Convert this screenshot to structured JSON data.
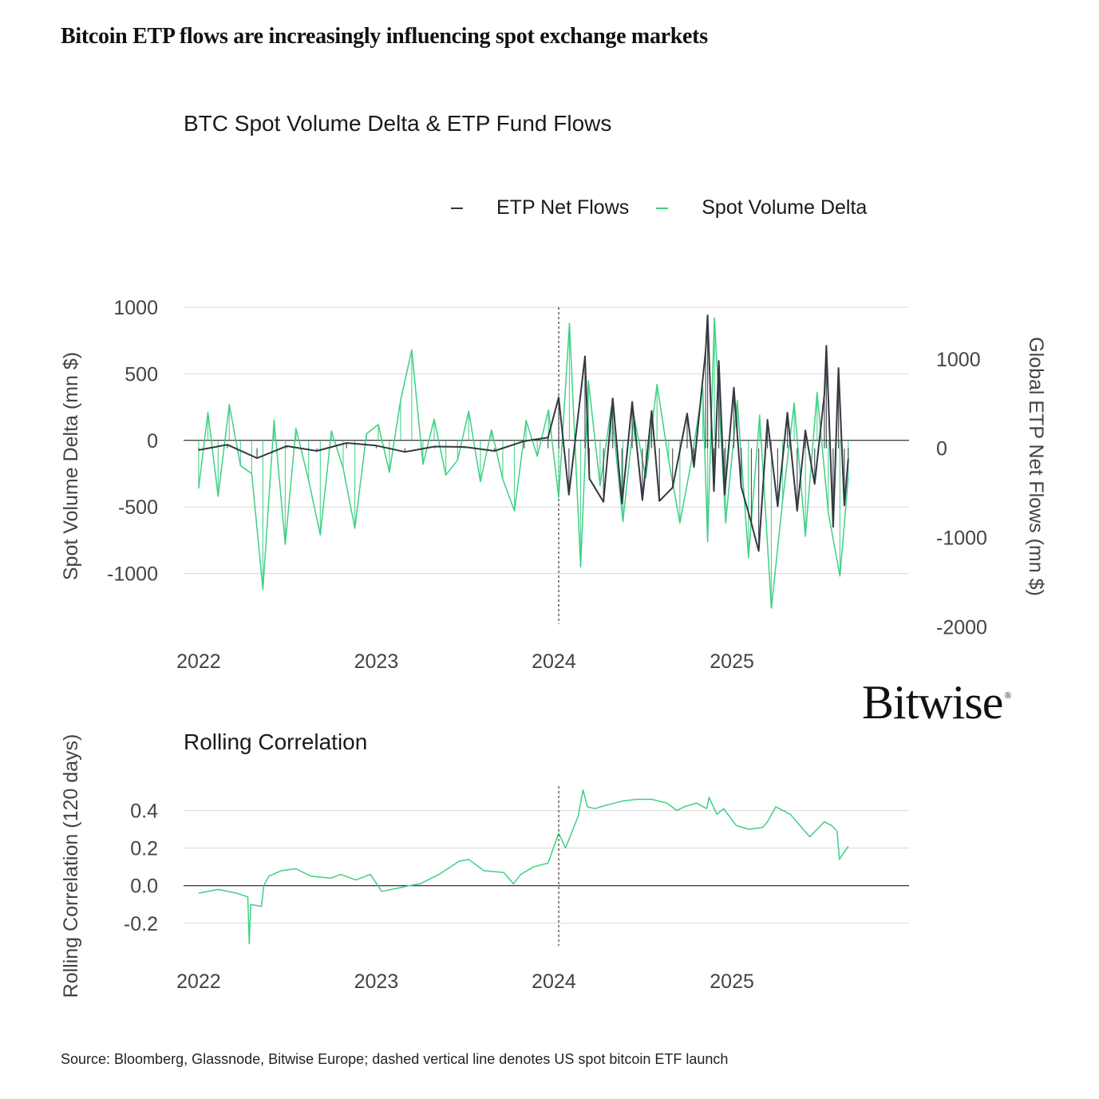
{
  "headline": "Bitcoin ETP flows are increasingly influencing spot exchange markets",
  "source": "Source: Bloomberg, Glassnode, Bitwise Europe; dashed vertical line denotes US spot bitcoin ETF launch",
  "logo_text": "Bitwise",
  "logo_mark": "®",
  "colors": {
    "etp": "#333840",
    "spot": "#3ed083",
    "grid": "#d8d8d8",
    "zero": "#000000"
  },
  "chart_data": [
    {
      "type": "line",
      "title": "BTC Spot Volume Delta & ETP Fund Flows",
      "legend_position": "top-right",
      "legend": [
        {
          "name": "ETP Net Flows",
          "color": "#333840"
        },
        {
          "name": "Spot Volume Delta",
          "color": "#3ed083"
        }
      ],
      "ylabel": "Spot Volume Delta (mn $)",
      "y2label": "Global ETP Net Flows (mn $)",
      "ylim": [
        -1380,
        1000
      ],
      "yticks": [
        1000,
        500,
        0,
        -500,
        -1000
      ],
      "y2lim": [
        -1970,
        1580
      ],
      "y2ticks": [
        1000,
        0,
        -1000,
        -2000
      ],
      "x_tick_labels": [
        "2022",
        "2023",
        "2024",
        "2025"
      ],
      "xlim": [
        "2021-12-01",
        "2025-12-31"
      ],
      "grid": true,
      "event_line": "2024-01-11",
      "series": [
        {
          "name": "Spot Volume Delta",
          "axis": "left",
          "x": [
            "2022-01-01",
            "2022-01-20",
            "2022-02-10",
            "2022-03-05",
            "2022-03-28",
            "2022-04-20",
            "2022-05-13",
            "2022-06-05",
            "2022-06-28",
            "2022-07-20",
            "2022-08-15",
            "2022-09-08",
            "2022-10-01",
            "2022-10-25",
            "2022-11-18",
            "2022-12-12",
            "2023-01-05",
            "2023-01-28",
            "2023-02-20",
            "2023-03-15",
            "2023-04-07",
            "2023-04-30",
            "2023-05-24",
            "2023-06-17",
            "2023-07-10",
            "2023-08-03",
            "2023-08-26",
            "2023-09-18",
            "2023-10-12",
            "2023-11-05",
            "2023-11-28",
            "2023-12-21",
            "2024-01-11",
            "2024-02-02",
            "2024-02-25",
            "2024-03-12",
            "2024-04-05",
            "2024-04-28",
            "2024-05-22",
            "2024-06-14",
            "2024-07-08",
            "2024-07-31",
            "2024-08-24",
            "2024-09-16",
            "2024-10-10",
            "2024-11-02",
            "2024-11-12",
            "2024-11-26",
            "2024-12-19",
            "2025-01-12",
            "2025-02-04",
            "2025-02-27",
            "2025-03-23",
            "2025-04-15",
            "2025-05-09",
            "2025-06-01",
            "2025-06-25",
            "2025-07-18",
            "2025-08-11",
            "2025-08-28"
          ],
          "values": [
            -360,
            210,
            -420,
            270,
            -190,
            -250,
            -1120,
            150,
            -780,
            90,
            -300,
            -710,
            70,
            -210,
            -660,
            50,
            120,
            -240,
            300,
            680,
            -180,
            160,
            -260,
            -150,
            220,
            -310,
            80,
            -290,
            -530,
            150,
            -120,
            230,
            -430,
            880,
            -950,
            450,
            -340,
            250,
            -610,
            180,
            -280,
            420,
            -150,
            -620,
            -150,
            400,
            -760,
            920,
            -620,
            300,
            -880,
            190,
            -1260,
            -460,
            280,
            -720,
            360,
            -540,
            -1020,
            -280
          ]
        },
        {
          "name": "ETP Net Flows",
          "axis": "right",
          "x": [
            "2022-01-01",
            "2022-03-01",
            "2022-05-01",
            "2022-07-01",
            "2022-09-01",
            "2022-11-01",
            "2023-01-01",
            "2023-03-01",
            "2023-05-01",
            "2023-07-01",
            "2023-09-01",
            "2023-11-01",
            "2023-12-20",
            "2024-01-11",
            "2024-02-01",
            "2024-03-05",
            "2024-03-14",
            "2024-04-12",
            "2024-05-01",
            "2024-05-20",
            "2024-06-10",
            "2024-07-01",
            "2024-07-20",
            "2024-08-05",
            "2024-09-01",
            "2024-10-01",
            "2024-10-15",
            "2024-11-08",
            "2024-11-12",
            "2024-11-25",
            "2024-12-05",
            "2024-12-17",
            "2025-01-05",
            "2025-01-20",
            "2025-02-10",
            "2025-02-25",
            "2025-03-15",
            "2025-04-05",
            "2025-04-25",
            "2025-05-15",
            "2025-06-01",
            "2025-06-20",
            "2025-07-10",
            "2025-07-14",
            "2025-07-28",
            "2025-08-08",
            "2025-08-20",
            "2025-08-28"
          ],
          "values": [
            -20,
            40,
            -110,
            25,
            -30,
            60,
            30,
            -40,
            20,
            15,
            -30,
            80,
            120,
            570,
            -520,
            1030,
            -340,
            -600,
            560,
            -620,
            520,
            -580,
            420,
            -590,
            -440,
            390,
            -210,
            1100,
            1490,
            -480,
            980,
            -520,
            680,
            -430,
            -840,
            -1150,
            320,
            -650,
            400,
            -700,
            200,
            -400,
            600,
            1150,
            -880,
            900,
            -640,
            -120
          ]
        }
      ]
    },
    {
      "type": "line",
      "title": "Rolling Correlation",
      "ylabel": "Rolling Correlation (120 days)",
      "ylim": [
        -0.32,
        0.53
      ],
      "yticks": [
        0.4,
        0.2,
        0.0,
        -0.2
      ],
      "ytick_labels": [
        "0.4",
        "0.2",
        "0.0",
        "-0.2"
      ],
      "x_tick_labels": [
        "2022",
        "2023",
        "2024",
        "2025"
      ],
      "xlim": [
        "2021-12-01",
        "2025-12-31"
      ],
      "grid": true,
      "event_line": "2024-01-11",
      "series": [
        {
          "name": "",
          "x": [
            "2022-01-01",
            "2022-02-10",
            "2022-03-20",
            "2022-04-12",
            "2022-04-15",
            "2022-04-18",
            "2022-05-10",
            "2022-05-15",
            "2022-05-25",
            "2022-06-20",
            "2022-07-20",
            "2022-08-20",
            "2022-09-30",
            "2022-10-20",
            "2022-11-20",
            "2022-12-20",
            "2023-01-12",
            "2023-02-20",
            "2023-03-10",
            "2023-04-01",
            "2023-05-10",
            "2023-06-20",
            "2023-07-10",
            "2023-08-10",
            "2023-09-20",
            "2023-10-10",
            "2023-10-25",
            "2023-11-20",
            "2023-12-20",
            "2024-01-11",
            "2024-01-25",
            "2024-02-20",
            "2024-03-01",
            "2024-03-10",
            "2024-03-25",
            "2024-04-20",
            "2024-05-20",
            "2024-06-20",
            "2024-07-20",
            "2024-08-20",
            "2024-09-10",
            "2024-09-25",
            "2024-10-20",
            "2024-11-10",
            "2024-11-15",
            "2024-12-01",
            "2024-12-15",
            "2025-01-10",
            "2025-02-05",
            "2025-03-05",
            "2025-03-15",
            "2025-04-01",
            "2025-05-01",
            "2025-06-10",
            "2025-07-10",
            "2025-07-25",
            "2025-08-05",
            "2025-08-10",
            "2025-08-15",
            "2025-08-28"
          ],
          "values": [
            -0.04,
            -0.02,
            -0.04,
            -0.06,
            -0.31,
            -0.1,
            -0.11,
            0.0,
            0.05,
            0.08,
            0.09,
            0.05,
            0.04,
            0.06,
            0.03,
            0.06,
            -0.03,
            -0.01,
            0.0,
            0.01,
            0.06,
            0.13,
            0.14,
            0.08,
            0.07,
            0.01,
            0.06,
            0.1,
            0.12,
            0.28,
            0.2,
            0.37,
            0.51,
            0.42,
            0.41,
            0.43,
            0.45,
            0.46,
            0.46,
            0.44,
            0.4,
            0.42,
            0.44,
            0.41,
            0.47,
            0.38,
            0.41,
            0.32,
            0.3,
            0.31,
            0.34,
            0.42,
            0.38,
            0.26,
            0.34,
            0.32,
            0.29,
            0.14,
            0.16,
            0.21
          ]
        }
      ]
    }
  ]
}
